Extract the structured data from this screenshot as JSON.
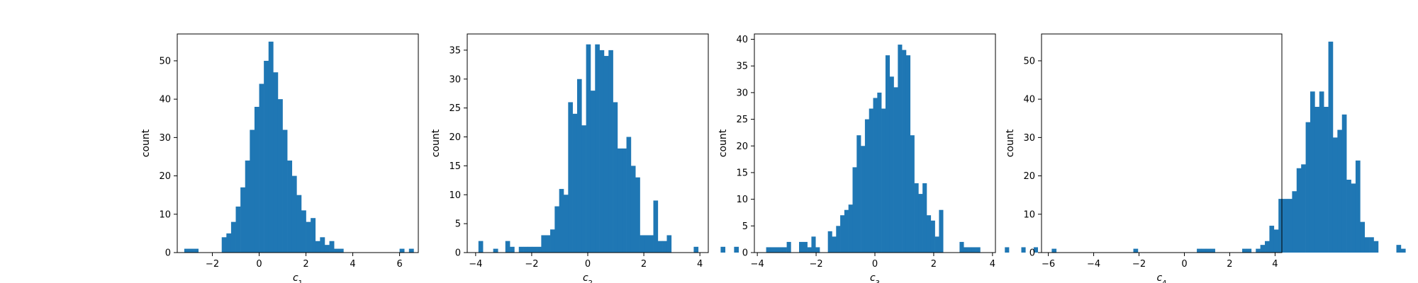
{
  "colors": {
    "bar": "#1f77b4",
    "axis": "#000000",
    "background": "#ffffff"
  },
  "chart_data": [
    {
      "type": "bar",
      "title": "",
      "xlabel": "c",
      "xlabel_sub": "1",
      "ylabel": "count",
      "xlim": [
        -3.5,
        6.8
      ],
      "ylim": [
        0,
        57
      ],
      "xticks": [
        -2,
        0,
        2,
        4,
        6
      ],
      "yticks": [
        0,
        10,
        20,
        30,
        40,
        50
      ],
      "bin_start": -3.2,
      "bin_width": 0.2,
      "values": [
        1,
        1,
        1,
        0,
        0,
        0,
        0,
        0,
        4,
        5,
        8,
        12,
        17,
        24,
        32,
        38,
        44,
        50,
        55,
        47,
        40,
        32,
        24,
        20,
        15,
        11,
        8,
        9,
        3,
        4,
        2,
        3,
        1,
        1,
        0,
        0,
        0,
        0,
        0,
        0,
        0,
        0,
        0,
        0,
        0,
        0,
        1,
        0,
        1,
        0,
        0,
        0,
        0,
        0,
        0,
        0,
        0,
        0,
        0,
        0,
        0,
        0,
        0,
        0,
        0,
        0,
        1
      ]
    },
    {
      "type": "bar",
      "title": "",
      "xlabel": "c",
      "xlabel_sub": "2",
      "ylabel": "count",
      "xlim": [
        -4.3,
        4.3
      ],
      "ylim": [
        0,
        37.8
      ],
      "xticks": [
        -4,
        -2,
        0,
        2,
        4
      ],
      "yticks": [
        0,
        5,
        10,
        15,
        20,
        25,
        30,
        35
      ],
      "bin_start": -3.9,
      "bin_width": 0.16,
      "values": [
        2,
        0,
        0,
        0,
        0,
        0,
        2,
        1,
        0,
        1,
        1,
        1,
        1,
        1,
        3,
        3,
        4,
        8,
        11,
        10,
        26,
        24,
        30,
        22,
        36,
        28,
        36,
        35,
        34,
        35,
        26,
        18,
        18,
        20,
        15,
        13,
        3,
        3,
        3,
        9,
        2,
        2,
        3,
        0,
        0,
        0,
        0,
        0,
        1,
        0,
        0,
        0,
        0,
        0,
        1,
        0,
        0,
        1
      ]
    },
    {
      "type": "bar",
      "title": "",
      "xlabel": "c",
      "xlabel_sub": "3",
      "ylabel": "count",
      "xlim": [
        -4.1,
        4.1
      ],
      "ylim": [
        0,
        41
      ],
      "xticks": [
        -4,
        -2,
        0,
        2,
        4
      ],
      "yticks": [
        0,
        5,
        10,
        15,
        20,
        25,
        30,
        35,
        40
      ],
      "bin_start": -3.7,
      "bin_width": 0.14,
      "values": [
        1,
        1,
        1,
        1,
        1,
        2,
        0,
        0,
        2,
        2,
        1,
        3,
        1,
        0,
        0,
        4,
        3,
        5,
        7,
        8,
        9,
        16,
        22,
        20,
        25,
        27,
        29,
        30,
        27,
        37,
        33,
        31,
        39,
        38,
        37,
        22,
        13,
        11,
        13,
        7,
        6,
        3,
        8,
        0,
        0,
        0,
        0,
        2,
        1,
        1,
        1,
        1,
        0,
        0,
        0,
        0,
        0,
        0,
        1,
        0,
        0,
        0,
        1,
        0,
        0,
        1
      ]
    },
    {
      "type": "bar",
      "title": "",
      "xlabel": "c",
      "xlabel_sub": "4",
      "ylabel": "count",
      "xlim": [
        -6.3,
        4.3
      ],
      "ylim": [
        0,
        57
      ],
      "xticks": [
        -6,
        -4,
        -2,
        0,
        2,
        4
      ],
      "yticks": [
        0,
        10,
        20,
        30,
        40,
        50
      ],
      "bin_start": -5.85,
      "bin_width": 0.2,
      "values": [
        1,
        0,
        0,
        0,
        0,
        0,
        0,
        0,
        0,
        0,
        0,
        0,
        0,
        0,
        0,
        0,
        0,
        0,
        1,
        0,
        0,
        0,
        0,
        0,
        0,
        0,
        0,
        0,
        0,
        0,
        0,
        0,
        1,
        1,
        1,
        1,
        0,
        0,
        0,
        0,
        0,
        0,
        1,
        1,
        0,
        1,
        2,
        3,
        7,
        6,
        14,
        14,
        14,
        16,
        22,
        23,
        34,
        42,
        38,
        42,
        38,
        55,
        30,
        32,
        36,
        19,
        18,
        24,
        8,
        4,
        4,
        3,
        0,
        0,
        0,
        0,
        2,
        1,
        0,
        0,
        0,
        0,
        0,
        0,
        0,
        0,
        0,
        0,
        0,
        0,
        0,
        0,
        0,
        0,
        0,
        0,
        0,
        0,
        0,
        0,
        0,
        0,
        1
      ]
    }
  ]
}
